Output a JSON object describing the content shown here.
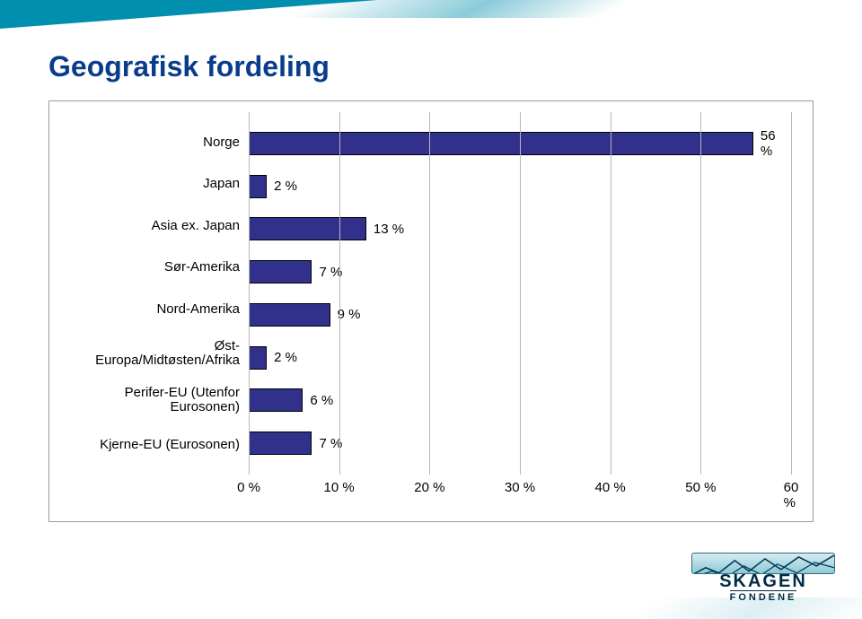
{
  "title": "Geografisk fordeling",
  "brand": {
    "word": "SKAGEN",
    "sub": "FONDENE",
    "accent_color": "#008fae",
    "text_color": "#002b45"
  },
  "chart": {
    "type": "bar",
    "orientation": "horizontal",
    "categories": [
      "Norge",
      "Japan",
      "Asia ex. Japan",
      "Sør-Amerika",
      "Nord-Amerika",
      "Øst-\nEuropa/Midtøsten/Afrika",
      "Perifer-EU (Utenfor\nEurosonen)",
      "Kjerne-EU (Eurosonen)"
    ],
    "values": [
      56,
      2,
      13,
      7,
      9,
      2,
      6,
      7
    ],
    "value_suffix": " %",
    "bar_color": "#31318c",
    "bar_border_color": "#000000",
    "xlim": [
      0,
      60
    ],
    "xtick_step": 10,
    "x_tick_labels": [
      "0 %",
      "10 %",
      "20 %",
      "30 %",
      "40 %",
      "50 %",
      "60 %"
    ],
    "grid_color": "#b8b8b8",
    "label_fontsize": 15,
    "tick_fontsize": 15,
    "background_color": "#ffffff",
    "frame_border_color": "#9a9a9a"
  },
  "title_color": "#0a3c8c",
  "title_fontsize": 32
}
